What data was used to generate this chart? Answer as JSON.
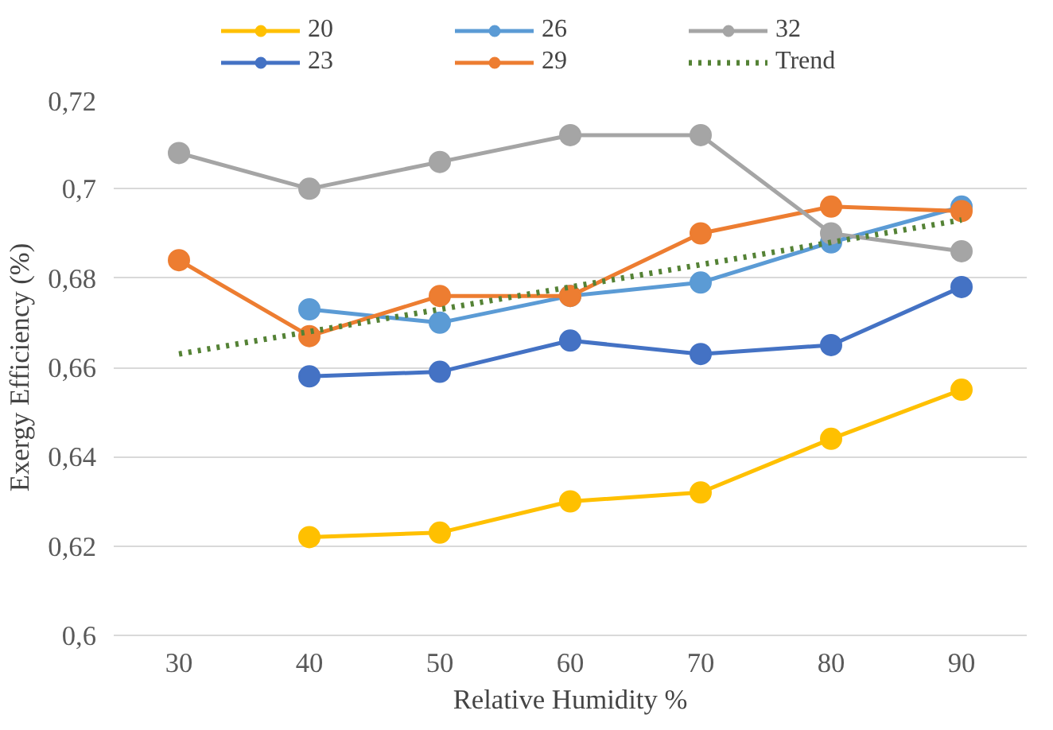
{
  "chart_data": {
    "type": "line",
    "xlabel": "Relative Humidity %",
    "ylabel": "Exergy Efficiency (%)",
    "xlim": [
      25,
      95
    ],
    "xticks": [
      30,
      40,
      50,
      60,
      70,
      80,
      90
    ],
    "ylim": [
      0.6,
      0.72
    ],
    "yticks": [
      {
        "value": 0.6,
        "label": "0,6"
      },
      {
        "value": 0.62,
        "label": "0,62"
      },
      {
        "value": 0.64,
        "label": "0,64"
      },
      {
        "value": 0.66,
        "label": "0,66"
      },
      {
        "value": 0.68,
        "label": "0,68"
      },
      {
        "value": 0.7,
        "label": "0,7"
      },
      {
        "value": 0.72,
        "label": "0,72"
      }
    ],
    "grid": "y",
    "legend": "top",
    "marker": "circle",
    "line_style": "solid",
    "series": [
      {
        "name": "20",
        "color": "#ffc000",
        "x": [
          40,
          50,
          60,
          70,
          80,
          90
        ],
        "values": [
          0.622,
          0.623,
          0.63,
          0.632,
          0.644,
          0.655
        ]
      },
      {
        "name": "23",
        "color": "#4472c4",
        "x": [
          40,
          50,
          60,
          70,
          80,
          90
        ],
        "values": [
          0.658,
          0.659,
          0.666,
          0.663,
          0.665,
          0.678
        ]
      },
      {
        "name": "26",
        "color": "#5b9bd5",
        "x": [
          40,
          50,
          60,
          70,
          80,
          90
        ],
        "values": [
          0.673,
          0.67,
          0.676,
          0.679,
          0.688,
          0.696
        ]
      },
      {
        "name": "29",
        "color": "#ed7d31",
        "x": [
          30,
          40,
          50,
          60,
          70,
          80,
          90
        ],
        "values": [
          0.684,
          0.667,
          0.676,
          0.676,
          0.69,
          0.696,
          0.695
        ]
      },
      {
        "name": "32",
        "color": "#a5a5a5",
        "x": [
          30,
          40,
          50,
          60,
          70,
          80,
          90
        ],
        "values": [
          0.708,
          0.7,
          0.706,
          0.712,
          0.712,
          0.69,
          0.686
        ]
      },
      {
        "name": "Trend",
        "color": "#548235",
        "x": [
          30,
          90
        ],
        "values": [
          0.663,
          0.693
        ],
        "marker": "none",
        "line_style": "dotted"
      }
    ]
  }
}
